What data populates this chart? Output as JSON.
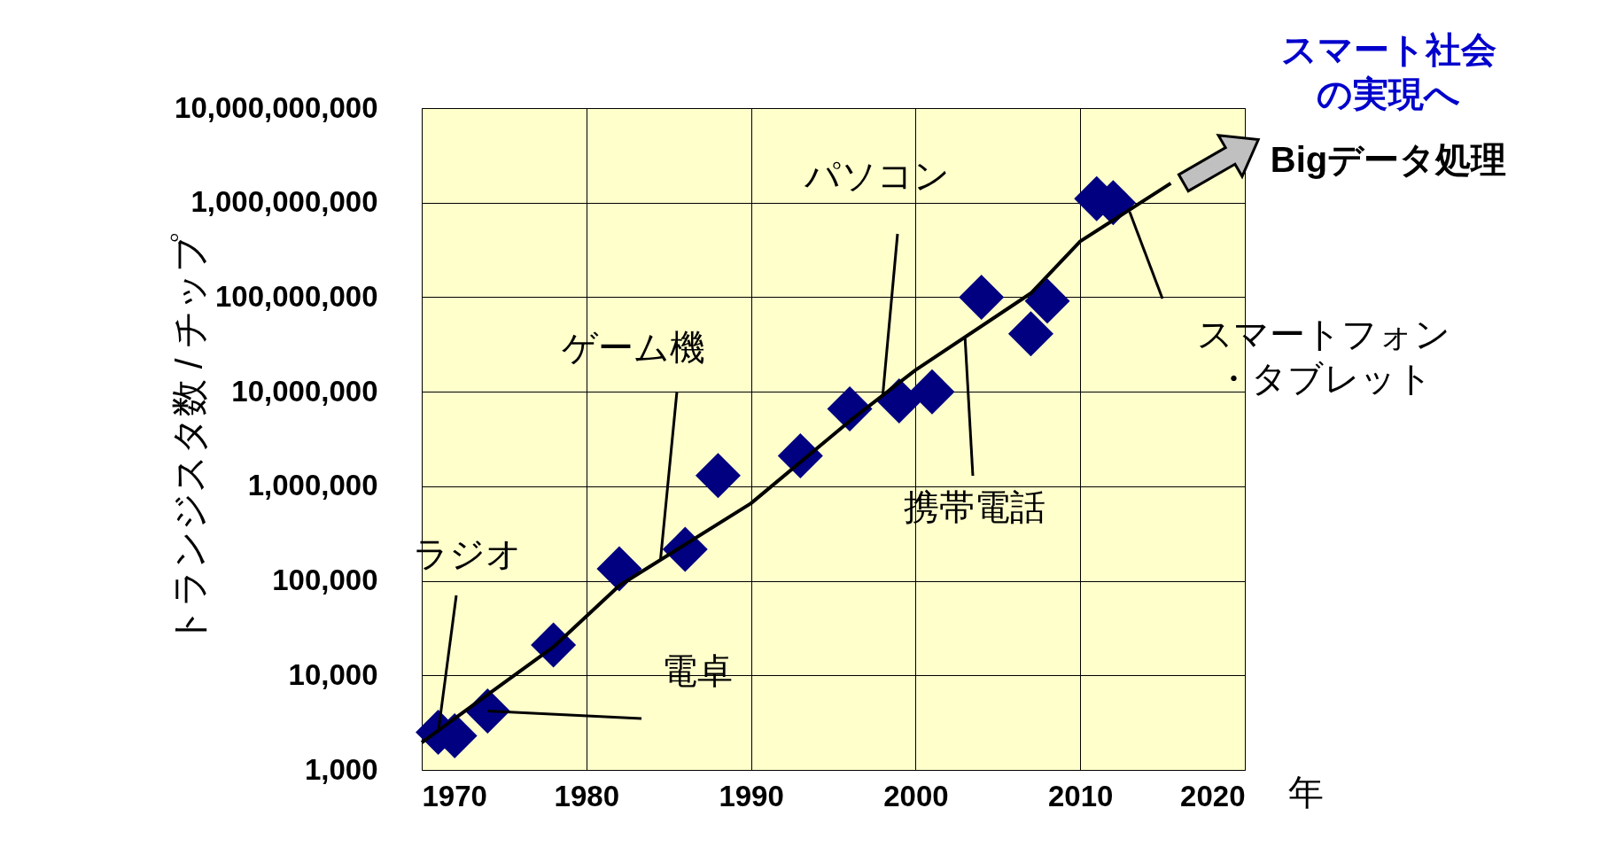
{
  "chart_data": {
    "type": "scatter",
    "xlabel": "年",
    "ylabel": "トランジスタ数 / チップ",
    "xlim": [
      1970,
      2020
    ],
    "xticks": [
      1970,
      1980,
      1990,
      2000,
      2010,
      2020
    ],
    "ylim": [
      1000,
      10000000000
    ],
    "yticks": [
      {
        "value": 1000,
        "label": "1,000"
      },
      {
        "value": 10000,
        "label": "10,000"
      },
      {
        "value": 100000,
        "label": "100,000"
      },
      {
        "value": 1000000,
        "label": "1,000,000"
      },
      {
        "value": 10000000,
        "label": "10,000,000"
      },
      {
        "value": 100000000,
        "label": "100,000,000"
      },
      {
        "value": 1000000000,
        "label": "1,000,000,000"
      },
      {
        "value": 10000000000,
        "label": "10,000,000,000"
      }
    ],
    "log": "y",
    "grid": true,
    "series": [
      {
        "color": "#000080",
        "marker": "diamond",
        "x": [
          1971,
          1972,
          1974,
          1978,
          1982,
          1986,
          1988,
          1993,
          1996,
          1999,
          2001,
          2004,
          2007,
          2008,
          2011,
          2012
        ],
        "values": [
          2500,
          2300,
          4200,
          21000,
          134000,
          215000,
          1300000,
          2100000,
          6600000,
          8000000,
          10000000,
          100000000,
          41000000,
          91000000,
          1100000000,
          1000000000
        ]
      },
      {
        "type": "line",
        "color": "#000000",
        "line_style": "solid",
        "x": [
          1970,
          1978,
          1982,
          1990,
          1996,
          2000,
          2007,
          2010,
          2015.5
        ],
        "values": [
          1950,
          20000,
          89000,
          660000,
          4900000,
          17000000,
          110000000,
          390000000,
          1600000000
        ]
      }
    ],
    "annotations": [
      {
        "text": "ラジオ",
        "x": 1971,
        "y": 2500
      },
      {
        "text": "電卓",
        "x": 1974,
        "y": 4200
      },
      {
        "text": "ゲーム機",
        "x": 1984.5,
        "y": 165000
      },
      {
        "text": "パソコン",
        "x": 1998,
        "y": 9000000
      },
      {
        "text": "携帯電話",
        "x": 2003,
        "y": 38000000
      },
      {
        "text": "スマートフォン・タブレット",
        "x": 2013,
        "y": 800000000
      },
      "スマート社会の実現へ",
      "Bigデータ処理"
    ]
  }
}
